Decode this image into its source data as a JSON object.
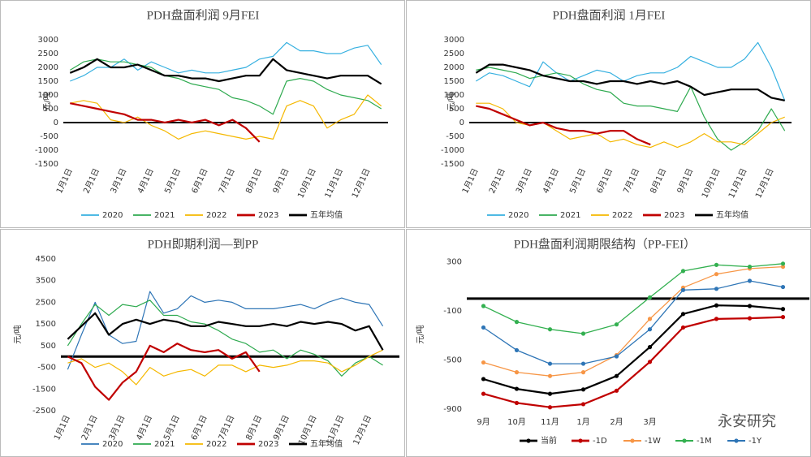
{
  "chart_data": [
    {
      "type": "line",
      "title": "PDH盘面利润  9月FEI",
      "y_label": "元/吨",
      "categories": [
        "1月1日",
        null,
        "2月1日",
        null,
        "3月1日",
        null,
        "4月1日",
        null,
        "5月1日",
        null,
        "6月1日",
        null,
        "7月1日",
        null,
        "8月1日",
        null,
        "9月1日",
        null,
        "10月1日",
        null,
        "11月1日",
        null,
        "12月1日",
        null
      ],
      "ylim": [
        -1500,
        3000
      ],
      "yticks": [
        3000,
        2500,
        2000,
        1500,
        1000,
        500,
        0,
        -500,
        -1000,
        -1500
      ],
      "legend": "bottom",
      "series": [
        {
          "name": "2020",
          "color": "#36b0e0",
          "width": 1.2,
          "values": [
            1500,
            1700,
            2000,
            2000,
            2300,
            1900,
            2200,
            2000,
            1800,
            1900,
            1800,
            1800,
            1900,
            2000,
            2300,
            2400,
            2900,
            2600,
            2600,
            2500,
            2500,
            2700,
            2800,
            2100
          ]
        },
        {
          "name": "2021",
          "color": "#2eaa4f",
          "width": 1.2,
          "values": [
            1900,
            2200,
            2300,
            2200,
            2200,
            2100,
            2000,
            1700,
            1600,
            1400,
            1300,
            1200,
            900,
            800,
            600,
            300,
            1500,
            1600,
            1500,
            1200,
            1000,
            900,
            800,
            500
          ]
        },
        {
          "name": "2022",
          "color": "#f5b800",
          "width": 1.2,
          "values": [
            700,
            800,
            700,
            100,
            0,
            200,
            -100,
            -300,
            -600,
            -400,
            -300,
            -400,
            -500,
            -600,
            -500,
            -600,
            600,
            800,
            600,
            -200,
            100,
            300,
            1000,
            600
          ]
        },
        {
          "name": "2023",
          "color": "#c00000",
          "width": 2.2,
          "values": [
            700,
            600,
            500,
            400,
            300,
            100,
            100,
            0,
            100,
            0,
            100,
            -100,
            100,
            -200,
            -700,
            null,
            null,
            null,
            null,
            null,
            null,
            null,
            null,
            null
          ]
        },
        {
          "name": "五年均值",
          "color": "#000000",
          "width": 2.2,
          "values": [
            1800,
            2000,
            2300,
            2000,
            2000,
            2100,
            1900,
            1700,
            1700,
            1600,
            1600,
            1500,
            1600,
            1700,
            1700,
            2300,
            1900,
            1800,
            1700,
            1600,
            1700,
            1700,
            1700,
            1400
          ]
        }
      ]
    },
    {
      "type": "line",
      "title": "PDH盘面利润  1月FEI",
      "y_label": "元/吨",
      "categories": [
        "1月1日",
        null,
        "2月1日",
        null,
        "3月1日",
        null,
        "4月1日",
        null,
        "5月1日",
        null,
        "6月1日",
        null,
        "7月1日",
        null,
        "8月1日",
        null,
        "9月1日",
        null,
        "10月1日",
        null,
        "11月1日",
        null,
        "12月1日",
        null
      ],
      "ylim": [
        -1500,
        3000
      ],
      "yticks": [
        3000,
        2500,
        2000,
        1500,
        1000,
        500,
        0,
        -500,
        -1000,
        -1500
      ],
      "legend": "bottom",
      "series": [
        {
          "name": "2020",
          "color": "#36b0e0",
          "width": 1.2,
          "values": [
            1500,
            1800,
            1700,
            1500,
            1300,
            2200,
            1800,
            1500,
            1700,
            1900,
            1800,
            1500,
            1700,
            1800,
            1800,
            2000,
            2400,
            2200,
            2000,
            2000,
            2300,
            2900,
            2000,
            800
          ]
        },
        {
          "name": "2021",
          "color": "#2eaa4f",
          "width": 1.2,
          "values": [
            1900,
            2000,
            1900,
            1800,
            1600,
            1700,
            1800,
            1700,
            1400,
            1200,
            1100,
            700,
            600,
            600,
            500,
            400,
            1300,
            200,
            -600,
            -1000,
            -700,
            -300,
            500,
            -300
          ]
        },
        {
          "name": "2022",
          "color": "#f5b800",
          "width": 1.2,
          "values": [
            700,
            700,
            500,
            0,
            -100,
            0,
            -300,
            -600,
            -500,
            -400,
            -700,
            -600,
            -800,
            -900,
            -700,
            -900,
            -700,
            -400,
            -700,
            -700,
            -800,
            -400,
            0,
            200
          ]
        },
        {
          "name": "2023",
          "color": "#c00000",
          "width": 2.2,
          "values": [
            600,
            500,
            300,
            100,
            -100,
            0,
            -200,
            -300,
            -300,
            -400,
            -300,
            -300,
            -600,
            -800,
            null,
            null,
            null,
            null,
            null,
            null,
            null,
            null,
            null,
            null
          ]
        },
        {
          "name": "五年均值",
          "color": "#000000",
          "width": 2.2,
          "values": [
            1800,
            2100,
            2100,
            2000,
            1900,
            1700,
            1600,
            1500,
            1500,
            1400,
            1500,
            1500,
            1400,
            1500,
            1400,
            1500,
            1300,
            1000,
            1100,
            1200,
            1200,
            1200,
            900,
            800
          ]
        }
      ]
    },
    {
      "type": "line",
      "title": "PDH即期利润—到PP",
      "y_label": "元/吨",
      "categories": [
        "1月1日",
        null,
        "2月1日",
        null,
        "3月1日",
        null,
        "4月1日",
        null,
        "5月1日",
        null,
        "6月1日",
        null,
        "7月1日",
        null,
        "8月1日",
        null,
        "9月1日",
        null,
        "10月1日",
        null,
        "11月1日",
        null,
        "12月1日",
        null
      ],
      "ylim": [
        -2500,
        4500
      ],
      "yticks": [
        4500,
        3500,
        2500,
        1500,
        500,
        -500,
        -1500,
        -2500
      ],
      "zero_line": 0,
      "legend": "bottom",
      "series": [
        {
          "name": "2020",
          "color": "#2e75b6",
          "width": 1.2,
          "values": [
            -600,
            1000,
            2500,
            1000,
            600,
            700,
            3000,
            2000,
            2200,
            2800,
            2500,
            2600,
            2500,
            2200,
            2200,
            2200,
            2300,
            2400,
            2200,
            2500,
            2700,
            2500,
            2400,
            1400
          ]
        },
        {
          "name": "2021",
          "color": "#2eaa4f",
          "width": 1.2,
          "values": [
            500,
            1500,
            2400,
            1900,
            2400,
            2300,
            2600,
            1900,
            1900,
            1600,
            1500,
            1200,
            800,
            600,
            200,
            300,
            -100,
            300,
            100,
            -200,
            -900,
            -300,
            0,
            -400
          ]
        },
        {
          "name": "2022",
          "color": "#f5b800",
          "width": 1.2,
          "values": [
            -300,
            -100,
            -500,
            -300,
            -700,
            -1300,
            -500,
            -900,
            -700,
            -600,
            -900,
            -400,
            -400,
            -700,
            -400,
            -500,
            -400,
            -200,
            -200,
            -300,
            -700,
            -400,
            0,
            300
          ]
        },
        {
          "name": "2023",
          "color": "#c00000",
          "width": 2.2,
          "values": [
            0,
            -300,
            -1400,
            -2000,
            -1200,
            -700,
            500,
            200,
            600,
            300,
            200,
            300,
            -100,
            200,
            -700,
            null,
            null,
            null,
            null,
            null,
            null,
            null,
            null,
            null
          ]
        },
        {
          "name": "五年均值",
          "color": "#000000",
          "width": 2.2,
          "values": [
            800,
            1400,
            2000,
            1000,
            1500,
            1700,
            1500,
            1700,
            1600,
            1400,
            1400,
            1600,
            1500,
            1400,
            1400,
            1500,
            1400,
            1600,
            1500,
            1600,
            1500,
            1200,
            1400,
            300
          ]
        }
      ]
    },
    {
      "type": "line",
      "title": "PDH盘面利润期限结构（PP-FEI）",
      "y_label": "元/吨",
      "markers": true,
      "categories": [
        "9月",
        "10月",
        "11月",
        "1月",
        "2月",
        "3月",
        null,
        null,
        null,
        null
      ],
      "ylim": [
        -900,
        350
      ],
      "yticks": [
        300,
        -100,
        -500,
        -900
      ],
      "zero_line": 0,
      "legend": "bottom",
      "watermark": "永安研究",
      "series": [
        {
          "name": "当前",
          "color": "#000000",
          "width": 2.2,
          "values": [
            -655,
            -735,
            -775,
            -740,
            -630,
            -395,
            -125,
            -55,
            -60,
            -85
          ]
        },
        {
          "name": "-1D",
          "color": "#c00000",
          "width": 2.2,
          "values": [
            -775,
            -850,
            -885,
            -860,
            -750,
            -515,
            -235,
            -165,
            -160,
            -150
          ]
        },
        {
          "name": "-1W",
          "color": "#f79646",
          "width": 1.3,
          "values": [
            -520,
            -600,
            -630,
            -600,
            -460,
            -165,
            90,
            200,
            245,
            260
          ]
        },
        {
          "name": "-1M",
          "color": "#33b050",
          "width": 1.3,
          "values": [
            -60,
            -190,
            -250,
            -285,
            -210,
            10,
            225,
            275,
            260,
            285
          ]
        },
        {
          "name": "-1Y",
          "color": "#2e75b6",
          "width": 1.3,
          "values": [
            -235,
            -420,
            -530,
            -530,
            -470,
            -250,
            70,
            80,
            145,
            95
          ]
        }
      ]
    }
  ]
}
